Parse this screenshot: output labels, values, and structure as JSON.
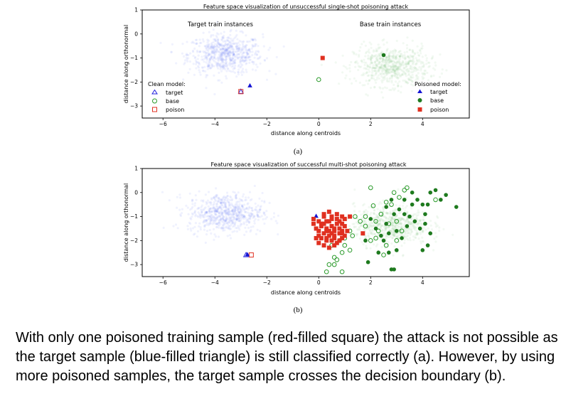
{
  "chart_data": [
    {
      "type": "scatter",
      "title": "Feature space visualization of unsuccessful single-shot poisoning attack",
      "xlabel": "distance along centroids",
      "ylabel": "distance along orthonormal",
      "xlim": [
        -6.8,
        5.8
      ],
      "ylim": [
        -3.5,
        1.0
      ],
      "xticks": [
        -6,
        -4,
        -2,
        0,
        2,
        4
      ],
      "yticks": [
        1,
        0,
        -1,
        -2,
        -3
      ],
      "sublabel": "(a)",
      "annotations": [
        {
          "text": "Target train instances",
          "x": -3.5,
          "y": 0.38
        },
        {
          "text": "Base train instances",
          "x": 2.8,
          "y": 0.38
        }
      ],
      "legend_clean": {
        "title": "Clean model:",
        "position": "left",
        "entries": [
          "target",
          "base",
          "poison"
        ]
      },
      "legend_poisoned": {
        "title": "Poisoned model:",
        "position": "right",
        "entries": [
          "target",
          "base",
          "poison"
        ]
      },
      "clusters": [
        {
          "name": "Target train instances",
          "color": "#5a6ff0",
          "center": [
            -3.6,
            -0.85
          ],
          "spread": [
            1.3,
            0.75
          ],
          "n": 700
        },
        {
          "name": "Base train instances",
          "color": "#6bbf6b",
          "center": [
            2.8,
            -1.35
          ],
          "spread": [
            1.3,
            0.75
          ],
          "n": 700
        }
      ],
      "series": [
        {
          "model": "clean",
          "role": "target",
          "marker": "triangle-open",
          "color": "#2222dd",
          "points": [
            [
              -3.0,
              -2.4
            ]
          ]
        },
        {
          "model": "clean",
          "role": "base",
          "marker": "circle-open",
          "color": "#2a9a2a",
          "points": [
            [
              0.0,
              -1.9
            ]
          ]
        },
        {
          "model": "clean",
          "role": "poison",
          "marker": "square-open",
          "color": "#e03020",
          "points": [
            [
              -3.0,
              -2.4
            ]
          ]
        },
        {
          "model": "poisoned",
          "role": "target",
          "marker": "triangle-filled",
          "color": "#1414d4",
          "points": [
            [
              -2.65,
              -2.15
            ]
          ]
        },
        {
          "model": "poisoned",
          "role": "base",
          "marker": "circle-filled",
          "color": "#1e7a1e",
          "points": [
            [
              2.5,
              -0.88
            ]
          ]
        },
        {
          "model": "poisoned",
          "role": "poison",
          "marker": "square-filled",
          "color": "#e03020",
          "points": [
            [
              0.15,
              -1.0
            ]
          ]
        }
      ]
    },
    {
      "type": "scatter",
      "title": "Feature space visualization of successful multi-shot poisoning attack",
      "xlabel": "distance along centroids",
      "ylabel": "distance along orthonormal",
      "xlim": [
        -6.8,
        5.8
      ],
      "ylim": [
        -3.5,
        1.0
      ],
      "xticks": [
        -6,
        -4,
        -2,
        0,
        2,
        4
      ],
      "yticks": [
        1,
        0,
        -1,
        -2,
        -3
      ],
      "sublabel": "(b)",
      "clusters": [
        {
          "name": "target train",
          "color": "#5a6ff0",
          "center": [
            -3.6,
            -0.85
          ],
          "spread": [
            1.3,
            0.75
          ],
          "n": 700
        },
        {
          "name": "base train",
          "color": "#6bbf6b",
          "center": [
            2.8,
            -1.35
          ],
          "spread": [
            1.3,
            0.75
          ],
          "n": 700
        }
      ],
      "series": [
        {
          "model": "clean",
          "role": "target",
          "marker": "triangle-open",
          "color": "#2222dd",
          "points": [
            [
              -2.8,
              -2.6
            ]
          ]
        },
        {
          "model": "clean",
          "role": "poison",
          "marker": "square-open",
          "color": "#e03020",
          "points": [
            [
              -2.6,
              -2.6
            ]
          ]
        },
        {
          "model": "poisoned",
          "role": "target",
          "marker": "triangle-filled",
          "color": "#1414d4",
          "points": [
            [
              -2.75,
              -2.58
            ],
            [
              -0.1,
              -0.98
            ]
          ]
        },
        {
          "model": "clean",
          "role": "base",
          "marker": "circle-open",
          "color": "#2a9a2a",
          "points": [
            [
              2.0,
              0.2
            ],
            [
              2.9,
              0.0
            ],
            [
              3.1,
              -0.2
            ],
            [
              3.3,
              0.1
            ],
            [
              3.4,
              0.2
            ],
            [
              2.1,
              -0.55
            ],
            [
              2.6,
              -0.4
            ],
            [
              2.8,
              -0.5
            ],
            [
              1.6,
              -1.2
            ],
            [
              1.8,
              -1.4
            ],
            [
              1.2,
              -1.6
            ],
            [
              1.3,
              -1.8
            ],
            [
              1.0,
              -1.9
            ],
            [
              0.8,
              -2.0
            ],
            [
              0.5,
              -2.2
            ],
            [
              0.6,
              -2.7
            ],
            [
              0.7,
              -2.8
            ],
            [
              0.9,
              -2.5
            ],
            [
              1.0,
              -2.2
            ],
            [
              1.2,
              -2.4
            ],
            [
              0.4,
              -3.0
            ],
            [
              0.3,
              -3.3
            ],
            [
              0.9,
              -3.3
            ],
            [
              0.6,
              -3.0
            ],
            [
              1.8,
              -1.0
            ],
            [
              2.2,
              -1.2
            ],
            [
              2.4,
              -0.9
            ],
            [
              2.0,
              -2.0
            ],
            [
              2.7,
              -1.3
            ],
            [
              3.0,
              -2.0
            ],
            [
              2.6,
              -2.2
            ],
            [
              2.2,
              -1.9
            ],
            [
              2.5,
              -2.6
            ],
            [
              3.2,
              -1.6
            ],
            [
              3.0,
              -1.2
            ],
            [
              4.5,
              -0.3
            ],
            [
              1.4,
              -1.0
            ],
            [
              2.3,
              -1.6
            ]
          ]
        },
        {
          "model": "poisoned",
          "role": "base",
          "marker": "circle-filled",
          "color": "#1e7a1e",
          "points": [
            [
              2.6,
              -0.6
            ],
            [
              2.9,
              -0.9
            ],
            [
              3.1,
              -0.7
            ],
            [
              3.3,
              -0.3
            ],
            [
              3.6,
              0.0
            ],
            [
              3.8,
              -0.3
            ],
            [
              4.0,
              -0.5
            ],
            [
              4.3,
              0.0
            ],
            [
              4.2,
              -0.5
            ],
            [
              4.5,
              0.1
            ],
            [
              3.5,
              -1.0
            ],
            [
              3.7,
              -1.2
            ],
            [
              3.9,
              -1.5
            ],
            [
              4.1,
              -1.3
            ],
            [
              4.3,
              -1.7
            ],
            [
              3.2,
              -1.9
            ],
            [
              3.0,
              -2.4
            ],
            [
              2.7,
              -2.5
            ],
            [
              2.4,
              -1.8
            ],
            [
              2.2,
              -1.5
            ],
            [
              2.0,
              -1.1
            ],
            [
              2.7,
              -1.7
            ],
            [
              2.3,
              -2.5
            ],
            [
              2.9,
              -3.2
            ],
            [
              2.8,
              -3.2
            ],
            [
              1.9,
              -2.9
            ],
            [
              1.8,
              -2.0
            ],
            [
              2.5,
              -2.0
            ],
            [
              5.3,
              -0.6
            ],
            [
              4.9,
              -0.1
            ],
            [
              4.7,
              -0.3
            ],
            [
              4.0,
              -2.4
            ],
            [
              4.2,
              -2.2
            ],
            [
              3.6,
              -0.5
            ],
            [
              3.3,
              -0.9
            ],
            [
              2.6,
              -1.3
            ],
            [
              3.0,
              -1.6
            ],
            [
              4.1,
              -0.9
            ],
            [
              2.8,
              -0.3
            ],
            [
              3.4,
              -1.4
            ]
          ]
        },
        {
          "model": "poisoned",
          "role": "poison",
          "marker": "square-filled",
          "color": "#e03020",
          "points": [
            [
              -0.2,
              -1.1
            ],
            [
              0.0,
              -1.2
            ],
            [
              0.2,
              -0.9
            ],
            [
              0.3,
              -1.2
            ],
            [
              0.5,
              -1.0
            ],
            [
              0.7,
              -0.9
            ],
            [
              0.9,
              -1.0
            ],
            [
              1.0,
              -1.1
            ],
            [
              0.1,
              -1.4
            ],
            [
              0.3,
              -1.5
            ],
            [
              0.5,
              -1.4
            ],
            [
              0.6,
              -1.6
            ],
            [
              0.8,
              -1.5
            ],
            [
              1.0,
              -1.4
            ],
            [
              1.1,
              -1.6
            ],
            [
              0.0,
              -1.6
            ],
            [
              0.2,
              -1.7
            ],
            [
              0.4,
              -1.8
            ],
            [
              0.6,
              -1.8
            ],
            [
              0.8,
              -1.7
            ],
            [
              0.9,
              -1.9
            ],
            [
              0.1,
              -1.9
            ],
            [
              0.3,
              -2.0
            ],
            [
              0.5,
              -2.0
            ],
            [
              0.7,
              -2.1
            ],
            [
              0.0,
              -2.1
            ],
            [
              0.2,
              -2.2
            ],
            [
              0.4,
              -2.3
            ],
            [
              0.6,
              -2.2
            ],
            [
              0.1,
              -1.3
            ],
            [
              0.4,
              -1.2
            ],
            [
              0.7,
              -1.3
            ],
            [
              0.9,
              -1.3
            ],
            [
              0.2,
              -1.0
            ],
            [
              0.5,
              -1.7
            ],
            [
              0.8,
              -2.0
            ],
            [
              0.3,
              -1.9
            ],
            [
              0.6,
              -1.5
            ],
            [
              0.9,
              -1.6
            ],
            [
              0.0,
              -1.8
            ],
            [
              1.0,
              -1.8
            ],
            [
              0.4,
              -1.6
            ],
            [
              0.7,
              -1.1
            ],
            [
              -0.1,
              -1.5
            ],
            [
              0.2,
              -1.3
            ],
            [
              0.5,
              -1.1
            ],
            [
              0.8,
              -1.2
            ],
            [
              -0.1,
              -1.9
            ],
            [
              0.6,
              -1.9
            ],
            [
              0.3,
              -1.6
            ],
            [
              -0.2,
              -1.3
            ],
            [
              1.7,
              -1.7
            ],
            [
              1.2,
              -1.0
            ],
            [
              0.4,
              -0.8
            ],
            [
              0.9,
              -1.7
            ]
          ]
        }
      ]
    }
  ],
  "caption": "With only one poisoned training sample (red-filled square) the attack is not possible as the target sample (blue-filled triangle) is still classified correctly (a). However, by using more poisoned samples, the target sample crosses the decision boundary (b)."
}
